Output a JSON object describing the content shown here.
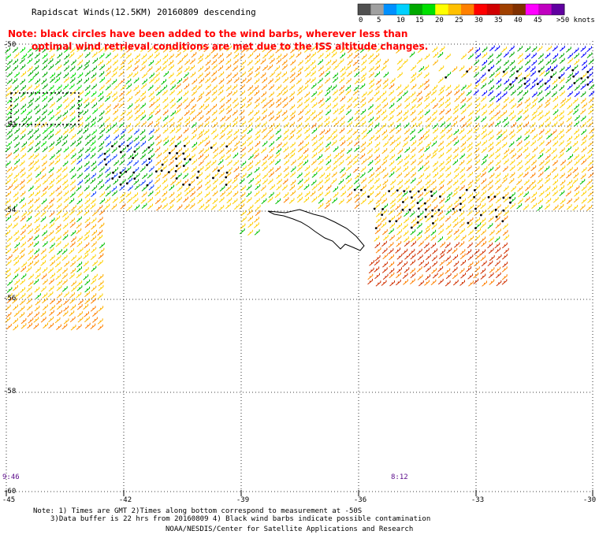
{
  "title": "Rapidscat Winds(12.5KM) 20160809 descending",
  "note_line1": "Note: black circles have been added to the wind barbs, wherever less than",
  "note_line2": "optimal wind retrieval conditions are met due to the ISS altitude changes.",
  "speed_scale": {
    "labels": [
      "0",
      "5",
      "10",
      "15",
      "20",
      "25",
      "30",
      "35",
      "40",
      "45",
      ">50 knots"
    ],
    "colors": [
      "#505050",
      "#a0a0a0",
      "#0090ff",
      "#00d0ff",
      "#00a800",
      "#00e000",
      "#ffff00",
      "#ffc000",
      "#ff8000",
      "#ff0000",
      "#d00000",
      "#a04000",
      "#803000",
      "#ff00ff",
      "#c000c0",
      "#6000a0"
    ]
  },
  "map": {
    "lat_labels": [
      "-50",
      "-52",
      "-54",
      "-56",
      "-58",
      "-60"
    ],
    "lon_labels": [
      "-45",
      "-42",
      "-39",
      "-36",
      "-33",
      "-30"
    ],
    "time_labels": [
      "9:46",
      "8:12"
    ]
  },
  "footer": {
    "line1": "Note: 1) Times are GMT 2)Times along bottom correspond to measurement at -50S",
    "line2": "3)Data buffer is 22 hrs from 20160809 4) Black wind barbs indicate possible contamination",
    "line3": "NOAA/NESDIS/Center for Satellite Applications and Research"
  }
}
